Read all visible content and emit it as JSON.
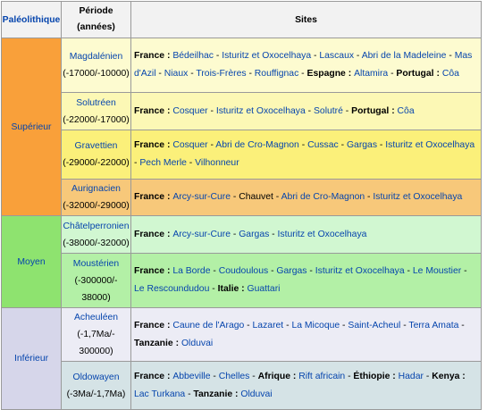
{
  "header": {
    "paleolithique": "Paléolithique",
    "periode_line1": "Période",
    "periode_line2": "(années)",
    "sites": "Sites"
  },
  "colors": {
    "superieur": "#f9a03a",
    "moyen": "#8ee36f",
    "inferieur": "#d6d6ea",
    "magdalenien": "#fdfbd0",
    "solutreen": "#fcf8b5",
    "gravettien": "#fbf07a",
    "aurignacien": "#f7c87a",
    "chatelperronien": "#d1f7d1",
    "mousterien": "#b3f0a6",
    "acheuleen": "#ececf5",
    "oldowayen": "#d5e3e6",
    "link": "#0645ad"
  },
  "groups": [
    {
      "id": "superieur",
      "label": "Supérieur",
      "rows": [
        {
          "id": "magdalenien",
          "name": "Magdalénien",
          "dates": "(-17000/-10000)",
          "sites": [
            {
              "country": "France",
              "items": [
                "Bédeilhac",
                "Isturitz et Oxocelhaya",
                "Lascaux",
                "Abri de la Madeleine",
                "Mas d'Azil",
                "Niaux",
                "Trois-Frères",
                "Rouffignac"
              ]
            },
            {
              "country": "Espagne",
              "items": [
                "Altamira"
              ]
            },
            {
              "country": "Portugal",
              "items": [
                "Côa"
              ]
            }
          ]
        },
        {
          "id": "solutreen",
          "name": "Solutréen",
          "dates": "(-22000/-17000)",
          "sites": [
            {
              "country": "France",
              "items": [
                "Cosquer",
                "Isturitz et Oxocelhaya",
                "Solutré"
              ]
            },
            {
              "country": "Portugal",
              "items": [
                "Côa"
              ]
            }
          ]
        },
        {
          "id": "gravettien",
          "name": "Gravettien",
          "dates": "(-29000/-22000)",
          "sites": [
            {
              "country": "France",
              "items": [
                "Cosquer",
                "Abri de Cro-Magnon",
                "Cussac",
                "Gargas",
                "Isturitz et Oxocelhaya",
                "Pech Merle",
                "Vilhonneur"
              ]
            }
          ]
        },
        {
          "id": "aurignacien",
          "name": "Aurignacien",
          "dates": "(-32000/-29000)",
          "sites": [
            {
              "country": "France",
              "items": [
                "Arcy-sur-Cure",
                "Chauvet",
                "Abri de Cro-Magnon",
                "Isturitz et Oxocelhaya"
              ],
              "plain": [
                "Chauvet"
              ]
            }
          ]
        }
      ]
    },
    {
      "id": "moyen",
      "label": "Moyen",
      "rows": [
        {
          "id": "chatelperronien",
          "name": "Châtelperronien",
          "dates": "(-38000/-32000)",
          "sites": [
            {
              "country": "France",
              "items": [
                "Arcy-sur-Cure",
                "Gargas",
                "Isturitz et Oxocelhaya"
              ]
            }
          ]
        },
        {
          "id": "mousterien",
          "name": "Moustérien",
          "dates_lines": [
            "(-300000/-",
            "38000)"
          ],
          "sites": [
            {
              "country": "France",
              "items": [
                "La Borde",
                "Coudoulous",
                "Gargas",
                "Isturitz et Oxocelhaya",
                "Le Moustier",
                "Le Rescoundudou"
              ]
            },
            {
              "country": "Italie",
              "items": [
                "Guattari"
              ]
            }
          ]
        }
      ]
    },
    {
      "id": "inferieur",
      "label": "Inférieur",
      "rows": [
        {
          "id": "acheuleen",
          "name": "Acheuléen",
          "dates_lines": [
            "(-1,7Ma/-",
            "300000)"
          ],
          "sites": [
            {
              "country": "France",
              "items": [
                "Caune de l'Arago",
                "Lazaret",
                "La Micoque",
                "Saint-Acheul",
                "Terra Amata"
              ]
            },
            {
              "country": "Tanzanie",
              "items": [
                "Olduvai"
              ]
            }
          ]
        },
        {
          "id": "oldowayen",
          "name": "Oldowayen",
          "dates": "(-3Ma/-1,7Ma)",
          "sites": [
            {
              "country": "France",
              "items": [
                "Abbeville",
                "Chelles"
              ]
            },
            {
              "country": "Afrique",
              "items": [
                "Rift africain"
              ]
            },
            {
              "country": "Éthiopie",
              "items": [
                "Hadar"
              ]
            },
            {
              "country": "Kenya",
              "items": [
                "Lac Turkana"
              ]
            },
            {
              "country": "Tanzanie",
              "items": [
                "Olduvai"
              ]
            }
          ]
        }
      ]
    }
  ]
}
